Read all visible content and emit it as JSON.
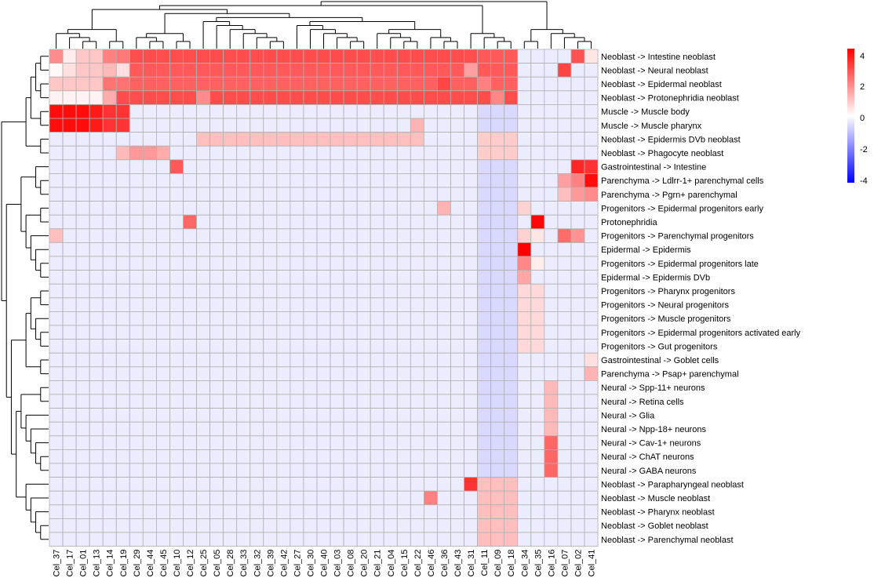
{
  "chart_data": {
    "type": "heatmap",
    "title": "",
    "columns": [
      "Cel_37",
      "Cel_17",
      "Cel_01",
      "Cel_13",
      "Cel_14",
      "Cel_19",
      "Cel_29",
      "Cel_44",
      "Cel_45",
      "Cel_10",
      "Cel_12",
      "Cel_25",
      "Cel_05",
      "Cel_28",
      "Cel_33",
      "Cel_32",
      "Cel_39",
      "Cel_42",
      "Cel_27",
      "Cel_30",
      "Cel_40",
      "Cel_03",
      "Cel_08",
      "Cel_20",
      "Cel_21",
      "Cel_04",
      "Cel_15",
      "Cel_22",
      "Cel_46",
      "Cel_36",
      "Cel_43",
      "Cel_31",
      "Cel_11",
      "Cel_09",
      "Cel_18",
      "Cel_34",
      "Cel_35",
      "Cel_16",
      "Cel_07",
      "Cel_02",
      "Cel_41"
    ],
    "rows": [
      "Neoblast -> Intestine neoblast",
      "Neoblast -> Neural neoblast",
      "Neoblast -> Epidermal neoblast",
      "Neoblast -> Protonephridia neoblast",
      "Muscle -> Muscle body",
      "Muscle -> Muscle pharynx",
      "Neoblast -> Epidermis DVb neoblast",
      "Neoblast -> Phagocyte neoblast",
      "Gastrointestinal -> Intestine",
      "Parenchyma -> Ldlrr-1+ parenchymal cells",
      "Parenchyma -> Pgrn+ parenchymal",
      "Progenitors -> Epidermal progenitors early",
      "Protonephridia",
      "Progenitors -> Parenchymal progenitors",
      "Epidermal -> Epidermis",
      "Progenitors -> Epidermal progenitors late",
      "Epidermal -> Epidermis DVb",
      "Progenitors -> Pharynx progenitors",
      "Progenitors -> Neural progenitors",
      "Progenitors -> Muscle progenitors",
      "Progenitors -> Epidermal progenitors activated early",
      "Progenitors -> Gut progenitors",
      "Gastrointestinal -> Goblet cells",
      "Parenchyma -> Psap+ parenchymal",
      "Neural -> Spp-11+ neurons",
      "Neural -> Retina cells",
      "Neural -> Glia",
      "Neural -> Npp-18+ neurons",
      "Neural -> Cav-1+ neurons",
      "Neural -> ChAT neurons",
      "Neural -> GABA neurons",
      "Neoblast -> Parapharyngeal neoblast",
      "Neoblast -> Muscle neoblast",
      "Neoblast -> Pharynx neoblast",
      "Neoblast -> Goblet neoblast",
      "Neoblast -> Parenchymal neoblast"
    ],
    "baseline": -0.3,
    "special": [
      {
        "row": 0,
        "values": [
          1.8,
          0.3,
          0.9,
          0.9,
          2.0,
          2.1,
          2.8,
          2.8,
          2.8,
          2.8,
          2.8,
          2.8,
          2.8,
          2.8,
          2.8,
          2.8,
          2.8,
          2.8,
          2.8,
          2.8,
          2.8,
          2.8,
          2.8,
          2.8,
          2.8,
          2.8,
          2.8,
          2.8,
          2.8,
          2.8,
          2.8,
          2.8,
          2.6,
          2.6,
          2.6,
          -0.3,
          -0.3,
          -0.3,
          -0.3,
          2.7,
          0.4
        ]
      },
      {
        "row": 1,
        "values": [
          0.1,
          0.5,
          0.9,
          0.9,
          1.1,
          0.5,
          2.6,
          2.6,
          2.6,
          2.6,
          2.6,
          2.6,
          2.6,
          2.6,
          2.6,
          2.6,
          2.6,
          2.6,
          2.6,
          2.6,
          2.6,
          2.6,
          2.6,
          2.6,
          2.6,
          2.6,
          2.6,
          2.6,
          2.6,
          2.6,
          2.6,
          1.5,
          2.6,
          2.6,
          2.6,
          -0.3,
          -0.3,
          -0.3,
          2.9,
          -0.3,
          -0.3
        ]
      },
      {
        "row": 2,
        "values": [
          0.9,
          0.9,
          0.9,
          0.9,
          2.2,
          2.2,
          2.5,
          2.5,
          2.5,
          2.5,
          2.5,
          2.5,
          2.5,
          2.5,
          2.5,
          2.5,
          2.5,
          2.5,
          2.5,
          2.5,
          2.5,
          2.5,
          2.5,
          2.5,
          2.5,
          2.5,
          2.5,
          2.5,
          2.5,
          2.9,
          2.5,
          2.5,
          2.0,
          2.5,
          2.5,
          -0.3,
          -0.3,
          -0.3,
          -0.3,
          -0.3,
          -0.3
        ]
      },
      {
        "row": 3,
        "values": [
          0.2,
          0.2,
          0.2,
          0.2,
          1.3,
          2.8,
          2.8,
          2.8,
          2.8,
          2.8,
          2.8,
          1.8,
          2.8,
          2.8,
          2.8,
          2.8,
          2.8,
          2.8,
          2.8,
          2.8,
          2.8,
          2.8,
          2.8,
          2.8,
          2.8,
          2.8,
          2.8,
          2.8,
          2.8,
          2.8,
          2.8,
          2.8,
          2.8,
          1.9,
          2.8,
          -0.3,
          -0.3,
          -0.3,
          -0.3,
          -0.3,
          -0.3
        ]
      },
      {
        "row": 4,
        "values": [
          3.8,
          3.8,
          3.8,
          3.6,
          3.2,
          3.2,
          null,
          null,
          null,
          null,
          null,
          null,
          null,
          null,
          null,
          null,
          null,
          null,
          null,
          null,
          null,
          null,
          null,
          null,
          null,
          null,
          null,
          null,
          null,
          null,
          null,
          null,
          -0.6,
          -0.6,
          -0.6,
          -0.3,
          -0.3,
          -0.3,
          -0.3,
          -0.3,
          -0.3
        ]
      },
      {
        "row": 5,
        "values": [
          3.8,
          3.8,
          3.8,
          3.6,
          3.2,
          3.2,
          null,
          null,
          null,
          null,
          null,
          null,
          null,
          null,
          null,
          null,
          null,
          null,
          null,
          null,
          null,
          null,
          null,
          null,
          null,
          null,
          null,
          1.2,
          null,
          null,
          null,
          null,
          -0.6,
          -0.6,
          -0.6,
          -0.3,
          -0.3,
          -0.3,
          -0.3,
          -0.3,
          -0.3
        ]
      },
      {
        "row": 6,
        "values": [
          -0.3,
          -0.3,
          -0.3,
          -0.3,
          -0.3,
          -0.3,
          -0.3,
          -0.3,
          -0.3,
          -0.3,
          -0.3,
          1.0,
          1.0,
          1.0,
          1.0,
          1.0,
          1.0,
          1.0,
          1.0,
          1.0,
          1.0,
          1.0,
          1.0,
          1.0,
          1.0,
          1.0,
          1.0,
          1.0,
          -0.3,
          -0.3,
          -0.3,
          -0.3,
          0.8,
          0.8,
          0.8,
          -0.3,
          -0.3,
          -0.3,
          -0.3,
          -0.3,
          -0.3
        ]
      },
      {
        "row": 7,
        "values": [
          -0.3,
          -0.3,
          -0.3,
          -0.3,
          -0.3,
          1.1,
          1.6,
          1.6,
          1.3,
          -0.3,
          -0.3,
          -0.3,
          -0.3,
          -0.3,
          -0.3,
          -0.3,
          -0.3,
          -0.3,
          -0.3,
          -0.3,
          -0.3,
          -0.3,
          -0.3,
          -0.3,
          -0.3,
          -0.3,
          -0.3,
          -0.3,
          -0.3,
          -0.3,
          -0.3,
          -0.3,
          0.8,
          0.8,
          0.8,
          -0.3,
          -0.3,
          -0.3,
          -0.3,
          -0.3,
          -0.3
        ]
      },
      {
        "cells": [
          [
            8,
            9,
            2.6
          ],
          [
            8,
            39,
            3.4
          ],
          [
            8,
            40,
            3.2
          ],
          [
            9,
            38,
            1.5
          ],
          [
            9,
            39,
            2.0
          ],
          [
            9,
            40,
            3.8
          ],
          [
            10,
            38,
            1.0
          ],
          [
            10,
            39,
            1.6
          ],
          [
            10,
            40,
            1.8
          ],
          [
            11,
            29,
            1.2
          ],
          [
            11,
            35,
            0.7
          ],
          [
            12,
            10,
            2.4
          ],
          [
            12,
            36,
            3.9
          ],
          [
            13,
            0,
            1.0
          ],
          [
            13,
            35,
            0.7
          ],
          [
            13,
            36,
            0.4
          ],
          [
            13,
            38,
            2.3
          ],
          [
            13,
            39,
            1.7
          ],
          [
            14,
            35,
            4.0
          ],
          [
            15,
            35,
            1.9
          ],
          [
            15,
            36,
            0.3
          ],
          [
            16,
            35,
            1.4
          ],
          [
            17,
            35,
            0.6
          ],
          [
            17,
            36,
            0.6
          ],
          [
            18,
            35,
            0.6
          ],
          [
            18,
            36,
            0.6
          ],
          [
            19,
            35,
            0.6
          ],
          [
            19,
            36,
            0.6
          ],
          [
            20,
            35,
            0.6
          ],
          [
            20,
            36,
            0.6
          ],
          [
            21,
            35,
            0.6
          ],
          [
            21,
            36,
            0.6
          ],
          [
            22,
            40,
            0.5
          ],
          [
            23,
            40,
            1.2
          ],
          [
            24,
            37,
            1.1
          ],
          [
            25,
            37,
            1.1
          ],
          [
            26,
            37,
            1.1
          ],
          [
            27,
            37,
            1.1
          ],
          [
            28,
            37,
            2.4
          ],
          [
            29,
            37,
            2.4
          ],
          [
            30,
            37,
            2.4
          ],
          [
            31,
            31,
            3.2
          ],
          [
            31,
            32,
            1.0
          ],
          [
            31,
            33,
            1.0
          ],
          [
            31,
            34,
            1.0
          ],
          [
            32,
            28,
            2.0
          ],
          [
            32,
            32,
            1.0
          ],
          [
            32,
            33,
            1.0
          ],
          [
            32,
            34,
            1.0
          ],
          [
            33,
            32,
            1.0
          ],
          [
            33,
            33,
            1.0
          ],
          [
            33,
            34,
            1.0
          ],
          [
            34,
            32,
            1.0
          ],
          [
            34,
            33,
            1.0
          ],
          [
            34,
            34,
            1.0
          ],
          [
            35,
            32,
            1.0
          ],
          [
            35,
            33,
            1.0
          ],
          [
            35,
            34,
            1.0
          ]
        ]
      }
    ],
    "dim_columns": {
      "Cel_11": -0.6,
      "Cel_09": -0.6,
      "Cel_18": -0.6
    },
    "legend": {
      "ticks": [
        "4",
        "2",
        "0",
        "-2",
        "-4"
      ],
      "range": [
        -4,
        4
      ],
      "colors": {
        "low": "#0000ff",
        "mid": "#ffffff",
        "high": "#ff0000"
      }
    },
    "grid_color": "#b0b0b0",
    "dendrogram_color": "#000000"
  }
}
